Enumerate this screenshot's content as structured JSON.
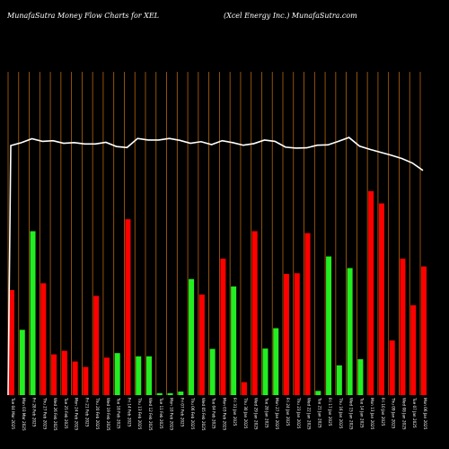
{
  "header": {
    "left": "MunafaSutra  Money Flow  Charts for XEL",
    "right": "(Xcel Energy Inc.) MunafaSutra.com"
  },
  "colors": {
    "background": "#000000",
    "up": "#22ee22",
    "down": "#ff0000",
    "grid": "#b8660b",
    "line": "#ffffff"
  },
  "chart_data": {
    "type": "bar",
    "title": "",
    "xlabel": "",
    "ylabel": "",
    "ylim": [
      0,
      100
    ],
    "categories": [
      "Tue 04 Mar 2025",
      "Mon 03 Mar 2025",
      "Fri 28 Feb 2025",
      "Thu 27 Feb 2025",
      "Wed 26 Feb 2025",
      "Tue 25 Feb 2025",
      "Mon 24 Feb 2025",
      "Fri 21 Feb 2025",
      "Thu 20 Feb 2025",
      "Wed 19 Feb 2025",
      "Tue 18 Feb 2025",
      "Fri 14 Feb 2025",
      "Thu 13 Feb 2025",
      "Wed 12 Feb 2025",
      "Tue 11 Feb 2025",
      "Mon 10 Feb 2025",
      "Fri 07 Feb 2025",
      "Thu 06 Feb 2025",
      "Wed 05 Feb 2025",
      "Tue 04 Feb 2025",
      "Mon 03 Feb 2025",
      "Fri 31 Jan 2025",
      "Thu 30 Jan 2025",
      "Wed 29 Jan 2025",
      "Tue 28 Jan 2025",
      "Mon 27 Jan 2025",
      "Fri 24 Jan 2025",
      "Thu 23 Jan 2025",
      "Wed 22 Jan 2025",
      "Tue 21 Jan 2025",
      "Fri 17 Jan 2025",
      "Thu 16 Jan 2025",
      "Wed 15 Jan 2025",
      "Tue 14 Jan 2025",
      "Mon 13 Jan 2025",
      "Fri 10 Jan 2025",
      "Thu 09 Jan 2025",
      "Wed 08 Jan 2025",
      "Tue 07 Jan 2025",
      "Mon 06 Jan 2025"
    ],
    "series": [
      {
        "values": [
          32.5,
          20.2,
          50.7,
          34.6,
          12.6,
          13.7,
          10.4,
          8.7,
          30.7,
          11.6,
          13.0,
          54.4,
          12.0,
          12.0,
          0.6,
          0.6,
          1.1,
          35.9,
          31.1,
          14.3,
          42.2,
          33.6,
          4.0,
          50.7,
          14.4,
          20.7,
          37.5,
          37.7,
          50.1,
          1.3,
          42.9,
          9.2,
          39.3,
          11.1,
          63.1,
          59.3,
          16.9,
          42.2,
          27.8,
          39.8
        ],
        "direction": [
          "down",
          "up",
          "up",
          "down",
          "down",
          "down",
          "down",
          "down",
          "down",
          "down",
          "up",
          "down",
          "up",
          "up",
          "up",
          "up",
          "up",
          "up",
          "down",
          "up",
          "down",
          "up",
          "down",
          "down",
          "up",
          "up",
          "down",
          "down",
          "down",
          "up",
          "up",
          "up",
          "up",
          "up",
          "down",
          "down",
          "down",
          "down",
          "down",
          "down"
        ]
      },
      {
        "values": [
          77.2,
          78.1,
          79.3,
          78.5,
          78.7,
          77.9,
          78.1,
          77.7,
          77.7,
          78.2,
          76.9,
          76.6,
          79.4,
          78.9,
          78.9,
          79.4,
          78.8,
          77.9,
          78.4,
          77.5,
          78.7,
          78.1,
          77.3,
          77.8,
          78.9,
          78.5,
          76.7,
          76.4,
          76.5,
          77.3,
          77.4,
          78.5,
          79.7,
          77.0,
          76.0,
          75.1,
          74.2,
          73.2,
          71.8,
          69.5
        ]
      }
    ],
    "line_start": 0
  }
}
